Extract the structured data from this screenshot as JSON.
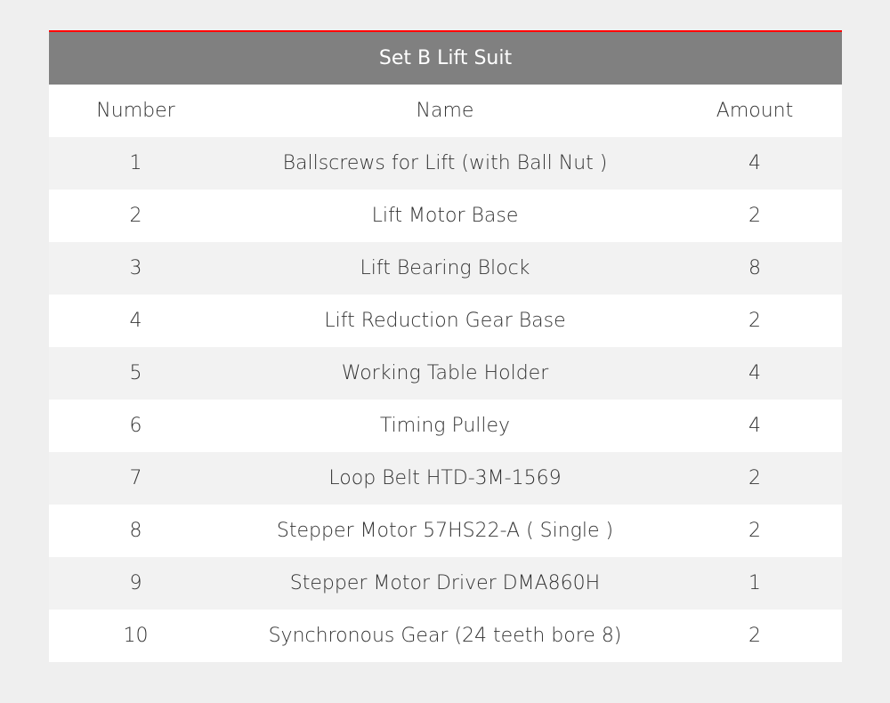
{
  "table": {
    "title": "Set B Lift Suit",
    "headers": {
      "number": "Number",
      "name": "Name",
      "amount": "Amount"
    },
    "rows": [
      {
        "number": "1",
        "name": "Ballscrews for Lift (with Ball Nut )",
        "amount": "4"
      },
      {
        "number": "2",
        "name": "Lift Motor Base",
        "amount": "2"
      },
      {
        "number": "3",
        "name": "Lift Bearing Block",
        "amount": "8"
      },
      {
        "number": "4",
        "name": "Lift Reduction Gear Base",
        "amount": "2"
      },
      {
        "number": "5",
        "name": "Working Table Holder",
        "amount": "4"
      },
      {
        "number": "6",
        "name": "Timing Pulley",
        "amount": "4"
      },
      {
        "number": "7",
        "name": "Loop Belt HTD-3M-1569",
        "amount": "2"
      },
      {
        "number": "8",
        "name": "Stepper Motor 57HS22-A ( Single )",
        "amount": "2"
      },
      {
        "number": "9",
        "name": "Stepper Motor Driver DMA860H",
        "amount": "1"
      },
      {
        "number": "10",
        "name": "Synchronous Gear (24 teeth bore 8)",
        "amount": "2"
      }
    ]
  },
  "colors": {
    "accent": "#ff0000",
    "header_bg": "#808080"
  }
}
